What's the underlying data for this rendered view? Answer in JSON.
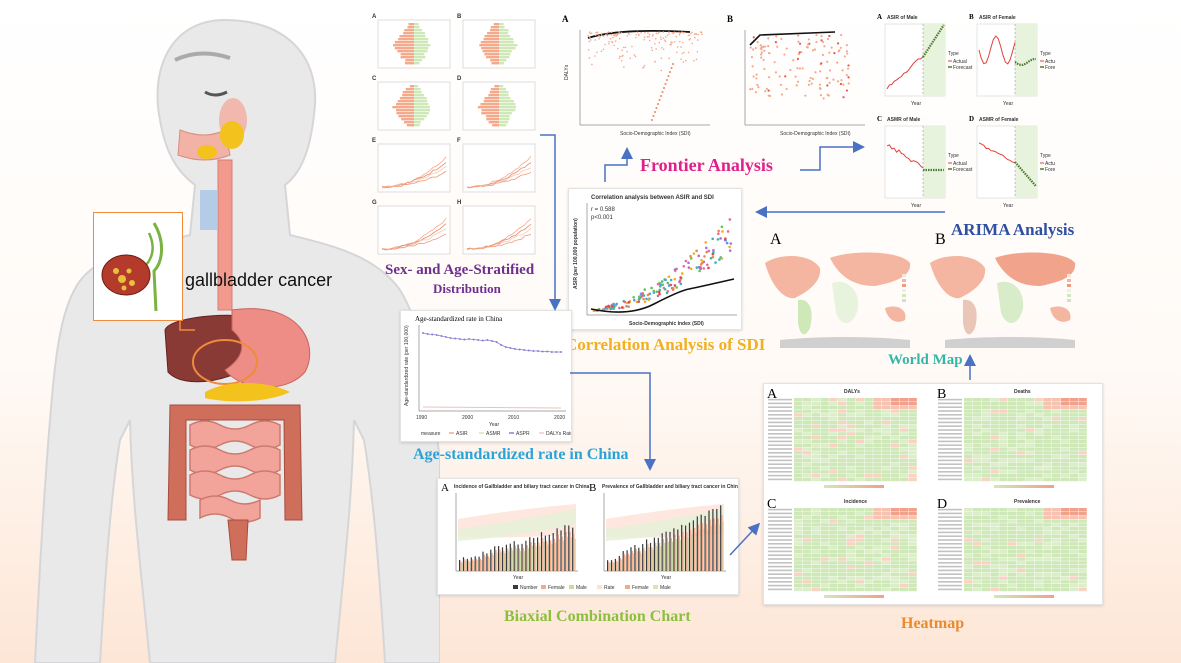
{
  "figure": {
    "organ_label": "gallbladder cancer",
    "sections": {
      "sex_age": {
        "line1": "Sex- and Age-Stratified",
        "line2": "Distribution",
        "color": "#6f2f8f"
      },
      "frontier": {
        "title": "Frontier Analysis",
        "color": "#e0208a"
      },
      "arima": {
        "title": "ARIMA Analysis",
        "color": "#2f4fa0"
      },
      "correlation": {
        "title": "Correlation Analysis of SDI",
        "color": "#f0b020"
      },
      "world_map": {
        "title": "World Map",
        "color": "#35b7a8"
      },
      "china": {
        "title": "Age-standardized rate in China",
        "color": "#2aa3d6"
      },
      "biaxial": {
        "title": "Biaxial Combination Chart",
        "color": "#8dbf3f"
      },
      "heatmap": {
        "title": "Heatmap",
        "color": "#e98a2c"
      }
    },
    "panel_letters": {
      "A": "A",
      "B": "B",
      "C": "C",
      "D": "D",
      "E": "E",
      "F": "F",
      "G": "G",
      "H": "H"
    },
    "frontier_panels": {
      "x_label": "Socio-Demographic Index (SDI)",
      "y_label": "DALYs"
    },
    "arima_panels": {
      "titles": [
        "ASIR of Male",
        "ASIR of Female",
        "ASMR of Male",
        "ASMR of Female"
      ],
      "x_label": "Year",
      "legend_title": "Type",
      "legend_items": [
        "Actual",
        "Forecast"
      ]
    },
    "correlation_panel": {
      "title": "Correlation analysis between ASIR and SDI",
      "r_text": "r = 0.588",
      "p_text": "p<0.001",
      "y_label": "ASIR (per 100,000 population)",
      "x_label": "Socio-Demographic Index (SDI)"
    },
    "china_panel": {
      "title": "Age-standardized rate in China",
      "y_label": "Age-standardized rate (per 100,000)",
      "x_label": "Year",
      "x_ticks": [
        "1990",
        "2000",
        "2010",
        "2020"
      ],
      "legend_title": "measure",
      "legend_items": [
        "ASIR",
        "ASMR",
        "ASPR",
        "DALYs Rate"
      ]
    },
    "biaxial_panels": {
      "titles": [
        "Incidence of Gallbladder and biliary tract cancer in China",
        "Prevalence of Gallbladder and biliary tract cancer in China"
      ],
      "x_label": "Year",
      "legend_items": [
        "Number",
        "Female",
        "Male",
        "Rate",
        "Female",
        "Male"
      ]
    },
    "heatmap_panels": {
      "titles": [
        "DALYs",
        "Deaths",
        "Incidence",
        "Prevalence"
      ]
    },
    "colors": {
      "arrow": "#4a72c4",
      "salmon": "#f4a98a",
      "light_green": "#cfe8b8",
      "red_line": "#e0413a",
      "forecast_green": "#4d7a2f",
      "body": "#e9e9ea",
      "panel_border": "#f08a3c"
    }
  }
}
